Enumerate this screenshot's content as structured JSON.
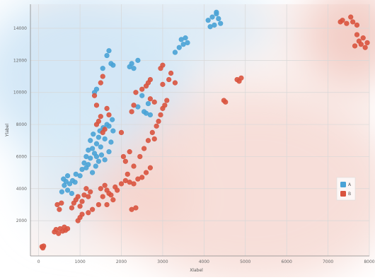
{
  "chart_data": {
    "type": "scatter",
    "title": "",
    "xlabel": "Xlabel",
    "ylabel": "Ylabel",
    "xlim": [
      -200,
      8000
    ],
    "ylim": [
      -200,
      15500
    ],
    "x_ticks": [
      0,
      1000,
      2000,
      3000,
      4000,
      5000,
      6000,
      7000,
      8000
    ],
    "y_ticks": [
      2000,
      4000,
      6000,
      8000,
      10000,
      12000,
      14000
    ],
    "x_tick_labels": [
      "0",
      "1000",
      "2000",
      "3000",
      "4000",
      "5000",
      "6000",
      "7000",
      "8000"
    ],
    "y_tick_labels": [
      "2000",
      "4000",
      "6000",
      "8000",
      "10000",
      "12000",
      "14000"
    ],
    "grid": true,
    "legend_position": "center-right",
    "background": "class probability shading (blue region upper-left, red region lower-right)",
    "series": [
      {
        "name": "A",
        "color": "#4aa3d6",
        "points": [
          [
            620,
            4200
          ],
          [
            660,
            4450
          ],
          [
            700,
            3900
          ],
          [
            560,
            3800
          ],
          [
            600,
            4600
          ],
          [
            750,
            4300
          ],
          [
            700,
            4800
          ],
          [
            820,
            4500
          ],
          [
            880,
            4400
          ],
          [
            800,
            3700
          ],
          [
            900,
            4900
          ],
          [
            1000,
            4800
          ],
          [
            1050,
            5200
          ],
          [
            1100,
            5600
          ],
          [
            1150,
            6000
          ],
          [
            1200,
            5500
          ],
          [
            1250,
            5900
          ],
          [
            1300,
            6500
          ],
          [
            1350,
            6200
          ],
          [
            1400,
            6800
          ],
          [
            1450,
            7200
          ],
          [
            1500,
            6600
          ],
          [
            1250,
            7000
          ],
          [
            1150,
            5300
          ],
          [
            1300,
            5000
          ],
          [
            1380,
            5400
          ],
          [
            1450,
            5700
          ],
          [
            1200,
            6400
          ],
          [
            1320,
            7400
          ],
          [
            1480,
            7600
          ],
          [
            1560,
            7800
          ],
          [
            1600,
            7100
          ],
          [
            1650,
            8000
          ],
          [
            1700,
            6300
          ],
          [
            1750,
            6900
          ],
          [
            1800,
            7600
          ],
          [
            1520,
            6100
          ],
          [
            1600,
            5800
          ],
          [
            1400,
            6000
          ],
          [
            1700,
            7900
          ],
          [
            1780,
            8300
          ],
          [
            1350,
            10000
          ],
          [
            1400,
            10200
          ],
          [
            1650,
            12300
          ],
          [
            1700,
            12600
          ],
          [
            1750,
            11800
          ],
          [
            1800,
            11700
          ],
          [
            1550,
            11500
          ],
          [
            2250,
            11800
          ],
          [
            2300,
            11500
          ],
          [
            2200,
            11600
          ],
          [
            2400,
            12000
          ],
          [
            2500,
            9800
          ],
          [
            2600,
            8700
          ],
          [
            2700,
            8600
          ],
          [
            2650,
            9300
          ],
          [
            2400,
            9100
          ],
          [
            2550,
            8800
          ],
          [
            3300,
            12500
          ],
          [
            3400,
            12800
          ],
          [
            3500,
            13000
          ],
          [
            3450,
            13300
          ],
          [
            3550,
            13400
          ],
          [
            3600,
            13100
          ],
          [
            4100,
            14500
          ],
          [
            4200,
            14700
          ],
          [
            4250,
            14200
          ],
          [
            4300,
            14900
          ],
          [
            4350,
            14600
          ],
          [
            4400,
            14300
          ],
          [
            4150,
            14100
          ],
          [
            4300,
            15000
          ]
        ]
      },
      {
        "name": "B",
        "color": "#d9543f",
        "points": [
          [
            100,
            300
          ],
          [
            120,
            420
          ],
          [
            80,
            380
          ],
          [
            380,
            1300
          ],
          [
            420,
            1450
          ],
          [
            480,
            1200
          ],
          [
            520,
            1500
          ],
          [
            580,
            1350
          ],
          [
            620,
            1600
          ],
          [
            650,
            1400
          ],
          [
            700,
            1500
          ],
          [
            450,
            3000
          ],
          [
            500,
            2700
          ],
          [
            550,
            3100
          ],
          [
            800,
            2800
          ],
          [
            850,
            3100
          ],
          [
            900,
            3300
          ],
          [
            950,
            3500
          ],
          [
            1000,
            2900
          ],
          [
            1050,
            3200
          ],
          [
            1100,
            3600
          ],
          [
            1150,
            4000
          ],
          [
            1200,
            3500
          ],
          [
            1250,
            3800
          ],
          [
            1000,
            2200
          ],
          [
            950,
            2000
          ],
          [
            1050,
            2400
          ],
          [
            1500,
            4000
          ],
          [
            1550,
            3500
          ],
          [
            1600,
            4200
          ],
          [
            1650,
            3900
          ],
          [
            1700,
            3700
          ],
          [
            1750,
            3600
          ],
          [
            1800,
            3300
          ],
          [
            1850,
            4100
          ],
          [
            1900,
            3900
          ],
          [
            2000,
            4300
          ],
          [
            2100,
            4500
          ],
          [
            2200,
            4400
          ],
          [
            2300,
            4300
          ],
          [
            2400,
            4600
          ],
          [
            2500,
            4700
          ],
          [
            2600,
            5000
          ],
          [
            2700,
            5300
          ],
          [
            2150,
            4900
          ],
          [
            2300,
            5400
          ],
          [
            2450,
            6000
          ],
          [
            2550,
            6500
          ],
          [
            2650,
            7000
          ],
          [
            2750,
            7500
          ],
          [
            2850,
            7900
          ],
          [
            2900,
            8200
          ],
          [
            2800,
            7100
          ],
          [
            2950,
            8600
          ],
          [
            3000,
            9000
          ],
          [
            2800,
            9400
          ],
          [
            2700,
            9600
          ],
          [
            3050,
            9200
          ],
          [
            3100,
            9500
          ],
          [
            1400,
            8000
          ],
          [
            1450,
            8200
          ],
          [
            1500,
            8500
          ],
          [
            1550,
            7500
          ],
          [
            1600,
            7700
          ],
          [
            1700,
            8600
          ],
          [
            1650,
            9000
          ],
          [
            1400,
            9200
          ],
          [
            1500,
            10600
          ],
          [
            1550,
            11000
          ],
          [
            1350,
            9800
          ],
          [
            2000,
            7500
          ],
          [
            2050,
            6000
          ],
          [
            2100,
            5700
          ],
          [
            2200,
            6300
          ],
          [
            2250,
            8800
          ],
          [
            2300,
            9200
          ],
          [
            2350,
            10000
          ],
          [
            2500,
            10200
          ],
          [
            2600,
            10400
          ],
          [
            2650,
            10600
          ],
          [
            2700,
            10800
          ],
          [
            3000,
            10500
          ],
          [
            3150,
            10800
          ],
          [
            3200,
            11200
          ],
          [
            3300,
            10600
          ],
          [
            2950,
            11500
          ],
          [
            3000,
            11700
          ],
          [
            1200,
            2500
          ],
          [
            1300,
            2700
          ],
          [
            1450,
            3000
          ],
          [
            2250,
            2700
          ],
          [
            2350,
            2800
          ],
          [
            1650,
            3000
          ],
          [
            4480,
            9500
          ],
          [
            4520,
            9400
          ],
          [
            4800,
            10800
          ],
          [
            4850,
            10700
          ],
          [
            4900,
            10900
          ],
          [
            7300,
            14400
          ],
          [
            7350,
            14500
          ],
          [
            7450,
            14300
          ],
          [
            7550,
            14700
          ],
          [
            7600,
            14400
          ],
          [
            7700,
            14200
          ],
          [
            7750,
            13200
          ],
          [
            7800,
            13000
          ],
          [
            7850,
            13400
          ],
          [
            7900,
            12800
          ],
          [
            7950,
            13100
          ],
          [
            7650,
            12900
          ],
          [
            7700,
            13600
          ]
        ]
      }
    ]
  },
  "legend": {
    "items": [
      {
        "label": "A",
        "color": "#4aa3d6"
      },
      {
        "label": "B",
        "color": "#d9543f"
      }
    ]
  }
}
